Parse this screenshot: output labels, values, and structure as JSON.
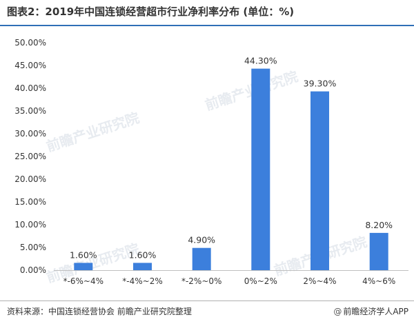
{
  "header": {
    "title": "图表2：2019年中国连锁经营超市行业净利率分布 (单位：%)"
  },
  "footer": {
    "source": "资料来源：中国连锁经营协会 前瞻产业研究院整理",
    "brand_icon": "@",
    "brand": "前瞻经济学人APP"
  },
  "watermark": {
    "text": "前瞻产业研究院"
  },
  "colors": {
    "bar": "#3c7fdc",
    "title_rule": "#2f6fb6"
  },
  "chart_data": {
    "type": "bar",
    "title": "图表2：2019年中国连锁经营超市行业净利率分布 (单位：%)",
    "xlabel": "",
    "ylabel": "",
    "categories": [
      "*-6%~4%",
      "*-4%~2%",
      "*-2%~0%",
      "0%~2%",
      "2%~4%",
      "4%~6%"
    ],
    "values": [
      1.6,
      1.6,
      4.9,
      44.3,
      39.3,
      8.2
    ],
    "value_labels": [
      "1.60%",
      "1.60%",
      "4.90%",
      "44.30%",
      "39.30%",
      "8.20%"
    ],
    "ylim": [
      0,
      50
    ],
    "yticks": [
      "0.00%",
      "5.00%",
      "10.00%",
      "15.00%",
      "20.00%",
      "25.00%",
      "30.00%",
      "35.00%",
      "40.00%",
      "45.00%",
      "50.00%"
    ],
    "grid": false,
    "legend": "none"
  }
}
